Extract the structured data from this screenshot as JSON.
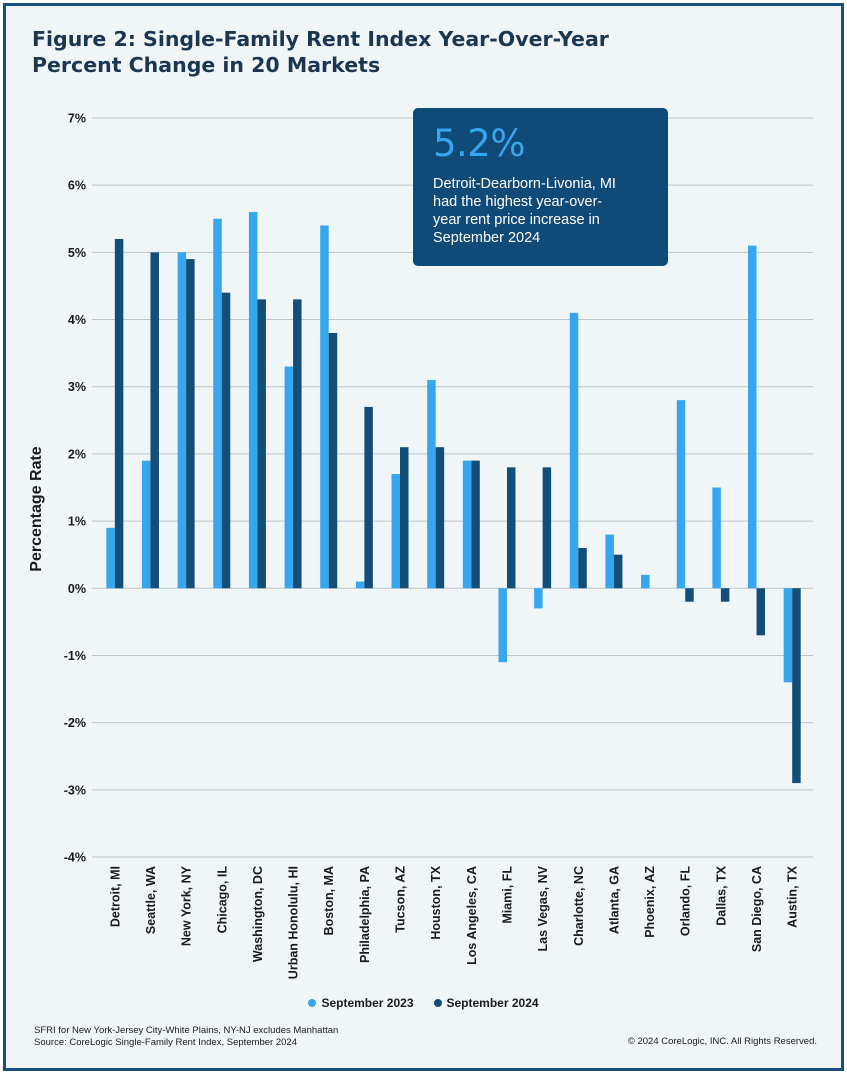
{
  "title": {
    "line1": "Figure 2: Single-Family Rent Index Year-Over-Year",
    "line2": "Percent Change in 20 Markets"
  },
  "callout": {
    "value": "5.2%",
    "lines": [
      "Detroit-Dearborn-Livonia, MI",
      "had the highest year-over-",
      "year rent price increase in",
      "September 2024"
    ]
  },
  "legend": {
    "series1": "September 2023",
    "series2": "September 2024"
  },
  "footer": {
    "note1": "SFRI for New York-Jersey City-White Plains, NY-NJ excludes Manhattan",
    "note2": "Source: CoreLogic Single-Family Rent Index, September 2024",
    "copyright": "© 2024 CoreLogic, INC. All Rights Reserved."
  },
  "colors": {
    "series1": "#36a7ee",
    "series2": "#134e79",
    "grid": "#bcc4ca",
    "text": "#1a1a1a"
  },
  "chart_data": {
    "type": "bar",
    "title": "Figure 2: Single-Family Rent Index Year-Over-Year Percent Change in 20 Markets",
    "xlabel": "",
    "ylabel": "Percentage Rate",
    "ylim": [
      -4,
      7
    ],
    "yticks": [
      7,
      6,
      5,
      4,
      3,
      2,
      1,
      0,
      -1,
      -2,
      -3,
      -4
    ],
    "ytick_labels": [
      "7%",
      "6%",
      "5%",
      "4%",
      "3%",
      "2%",
      "1%",
      "0%",
      "-1%",
      "-2%",
      "-3%",
      "-4%"
    ],
    "grid": true,
    "legend_position": "bottom-center",
    "categories": [
      "Detroit, MI",
      "Seattle, WA",
      "New York, NY",
      "Chicago, IL",
      "Washington, DC",
      "Urban Honolulu, HI",
      "Boston, MA",
      "Philadelphia, PA",
      "Tucson, AZ",
      "Houston, TX",
      "Los Angeles, CA",
      "Miami, FL",
      "Las Vegas, NV",
      "Charlotte, NC",
      "Atlanta, GA",
      "Phoenix, AZ",
      "Orlando, FL",
      "Dallas, TX",
      "San Diego, CA",
      "Austin, TX"
    ],
    "series": [
      {
        "name": "September 2023",
        "values": [
          0.9,
          1.9,
          5.0,
          5.5,
          5.6,
          3.3,
          5.4,
          0.1,
          1.7,
          3.1,
          1.9,
          -1.1,
          -0.3,
          4.1,
          0.8,
          0.2,
          2.8,
          1.5,
          5.1,
          -1.4
        ]
      },
      {
        "name": "September 2024",
        "values": [
          5.2,
          5.0,
          4.9,
          4.4,
          4.3,
          4.3,
          3.8,
          2.7,
          2.1,
          2.1,
          1.9,
          1.8,
          1.8,
          0.6,
          0.5,
          0.0,
          -0.2,
          -0.2,
          -0.7,
          -2.9
        ]
      }
    ]
  }
}
